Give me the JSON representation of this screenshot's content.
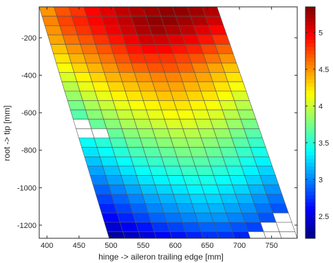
{
  "chart_data": {
    "type": "heatmap",
    "xlabel": "hinge -> aileron trailing edge [mm]",
    "ylabel": "root -> tip [mm]",
    "xlim": [
      388,
      790
    ],
    "ylim": [
      -1270,
      -35
    ],
    "xticks": [
      400,
      450,
      500,
      550,
      600,
      650,
      700,
      750
    ],
    "yticks": [
      -200,
      -400,
      -600,
      -800,
      -1000,
      -1200
    ],
    "xtick_labels": [
      "400",
      "450",
      "500",
      "550",
      "600",
      "650",
      "700",
      "750"
    ],
    "ytick_labels": [
      "-200",
      "-400",
      "-600",
      "-800",
      "-1000",
      "-1200"
    ],
    "colorbar": {
      "range": [
        2.2,
        5.35
      ],
      "ticks": [
        2.5,
        3,
        3.5,
        4,
        4.5,
        5
      ],
      "tick_labels": [
        "2.5",
        "3",
        "3.5",
        "4",
        "4.5",
        "5"
      ],
      "colormap": "jet"
    },
    "grid": true,
    "mesh": {
      "description_of_axes": "rows run root (top) to tip (bottom); columns run hinge to trailing edge",
      "row_y": [
        -35,
        -85,
        -135,
        -185,
        -235,
        -285,
        -335,
        -385,
        -435,
        -485,
        -535,
        -585,
        -635,
        -685,
        -735,
        -785,
        -835,
        -885,
        -935,
        -985,
        -1035,
        -1085,
        -1135,
        -1185,
        -1235,
        -1270
      ],
      "hinge_x_top": 388,
      "hinge_x_bottom": 497,
      "trailing_x_top": 665,
      "trailing_x_bottom": 790,
      "columns": 12,
      "values": [
        [
          4.5,
          4.7,
          4.8,
          4.95,
          5.05,
          5.15,
          5.2,
          5.25,
          5.3,
          5.3,
          5.25,
          5.2
        ],
        [
          4.55,
          4.75,
          4.85,
          4.95,
          5.05,
          5.15,
          5.25,
          5.3,
          5.3,
          5.25,
          5.2,
          5.1
        ],
        [
          4.5,
          4.7,
          4.8,
          4.9,
          5.0,
          5.1,
          5.2,
          5.25,
          5.2,
          5.15,
          5.05,
          4.95
        ],
        [
          4.45,
          4.6,
          4.7,
          4.8,
          4.9,
          5.0,
          5.1,
          5.1,
          5.05,
          5.0,
          4.9,
          4.8
        ],
        [
          4.35,
          4.5,
          4.6,
          4.7,
          4.8,
          4.9,
          4.95,
          4.95,
          4.9,
          4.85,
          4.75,
          4.65
        ],
        [
          4.25,
          4.4,
          4.5,
          4.6,
          4.7,
          4.8,
          4.8,
          4.8,
          4.75,
          4.7,
          4.6,
          4.5
        ],
        [
          4.15,
          4.3,
          4.4,
          4.5,
          4.6,
          4.65,
          4.7,
          4.7,
          4.65,
          4.55,
          4.45,
          4.35
        ],
        [
          4.05,
          4.2,
          4.3,
          4.4,
          4.45,
          4.5,
          4.55,
          4.55,
          4.5,
          4.45,
          4.35,
          4.25
        ],
        [
          3.95,
          4.1,
          4.2,
          4.3,
          4.35,
          4.4,
          4.45,
          4.45,
          4.4,
          4.35,
          4.25,
          4.15
        ],
        [
          3.85,
          4.0,
          4.1,
          4.2,
          4.25,
          4.3,
          4.35,
          4.35,
          4.3,
          4.25,
          4.15,
          4.05
        ],
        [
          3.75,
          3.9,
          4.0,
          4.1,
          4.15,
          4.2,
          4.25,
          4.25,
          4.2,
          4.15,
          4.05,
          3.95
        ],
        [
          3.65,
          3.8,
          3.9,
          4.0,
          4.05,
          4.1,
          4.15,
          4.15,
          4.1,
          4.05,
          3.95,
          3.85
        ],
        [
          null,
          3.7,
          3.8,
          3.9,
          3.95,
          4.0,
          4.05,
          4.05,
          4.0,
          3.95,
          3.85,
          3.75
        ],
        [
          null,
          null,
          3.7,
          3.8,
          3.85,
          3.9,
          3.95,
          3.95,
          3.9,
          3.85,
          3.75,
          3.65
        ],
        [
          3.4,
          3.5,
          3.6,
          3.7,
          3.75,
          3.8,
          3.85,
          3.85,
          3.8,
          3.75,
          3.65,
          3.55
        ],
        [
          3.3,
          3.4,
          3.5,
          3.6,
          3.65,
          3.7,
          3.75,
          3.75,
          3.7,
          3.65,
          3.55,
          3.45
        ],
        [
          3.2,
          3.3,
          3.4,
          3.5,
          3.55,
          3.6,
          3.65,
          3.65,
          3.6,
          3.55,
          3.45,
          3.35
        ],
        [
          3.1,
          3.2,
          3.3,
          3.4,
          3.45,
          3.5,
          3.55,
          3.55,
          3.5,
          3.45,
          3.35,
          3.25
        ],
        [
          3.0,
          3.1,
          3.2,
          3.3,
          3.35,
          3.4,
          3.45,
          3.45,
          3.4,
          3.35,
          3.25,
          3.15
        ],
        [
          2.9,
          3.0,
          3.1,
          3.2,
          3.25,
          3.3,
          3.35,
          3.35,
          3.3,
          3.25,
          3.15,
          3.05
        ],
        [
          2.8,
          2.9,
          3.0,
          3.1,
          3.15,
          3.2,
          3.25,
          3.25,
          3.2,
          3.15,
          3.05,
          2.95
        ],
        [
          2.7,
          2.8,
          2.9,
          3.0,
          3.05,
          3.1,
          3.15,
          3.15,
          3.1,
          3.05,
          2.95,
          2.85
        ],
        [
          2.6,
          2.7,
          2.8,
          2.9,
          2.95,
          3.0,
          3.05,
          3.05,
          3.0,
          2.95,
          2.85,
          null
        ],
        [
          2.45,
          2.55,
          2.65,
          2.75,
          2.8,
          2.85,
          2.9,
          2.9,
          2.85,
          2.8,
          null,
          null
        ],
        [
          2.3,
          2.4,
          2.5,
          2.6,
          2.65,
          2.7,
          2.75,
          2.75,
          2.7,
          null,
          null,
          null
        ]
      ]
    }
  }
}
